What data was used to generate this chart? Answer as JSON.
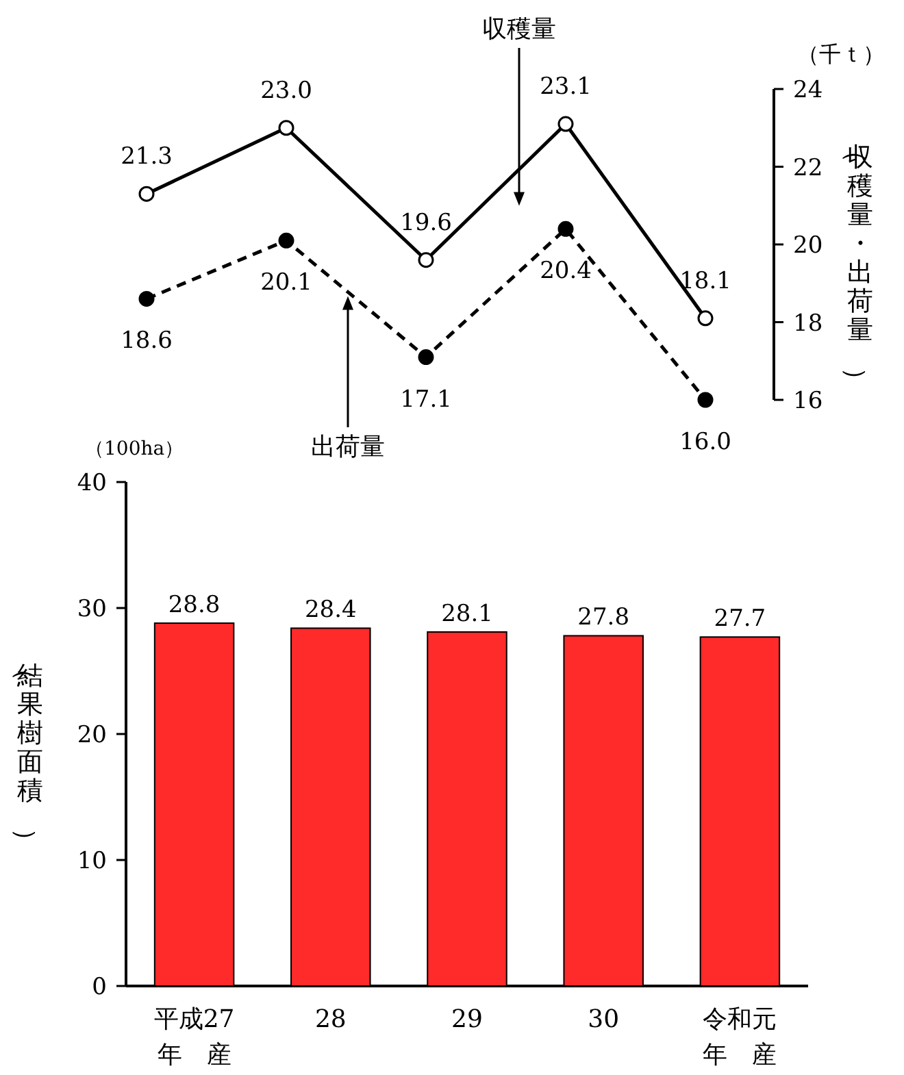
{
  "chart_data": [
    {
      "type": "line",
      "categories": [
        null,
        null,
        null,
        null,
        null
      ],
      "ylabel": "（収穫量・出荷量）",
      "ylim": [
        16,
        24
      ],
      "yticks": [
        16,
        18,
        20,
        22,
        24
      ],
      "tick_labels": "y",
      "marker": "circle",
      "annotations": [
        "（千ｔ）"
      ],
      "series": [
        {
          "name": "収穫量",
          "color": "#000000",
          "line_style": "solid",
          "values": [
            21.3,
            23.0,
            19.6,
            23.1,
            18.1
          ],
          "value_labels": [
            "21.3",
            "23.0",
            "19.6",
            "23.1",
            "18.1"
          ]
        },
        {
          "name": "出荷量",
          "color": "#000000",
          "line_style": "dashed",
          "values": [
            18.6,
            20.1,
            17.1,
            20.4,
            16.0
          ],
          "value_labels": [
            "18.6",
            "20.1",
            "17.1",
            "20.4",
            "16.0"
          ]
        }
      ]
    },
    {
      "type": "bar",
      "categories": [
        "平成27年　産",
        "28",
        "29",
        "30",
        "令和元年　産"
      ],
      "values": [
        28.8,
        28.4,
        28.1,
        27.8,
        27.7
      ],
      "value_labels": [
        "28.8",
        "28.4",
        "28.1",
        "27.8",
        "27.7"
      ],
      "color": "#ff2a2a",
      "ylabel": "（結果樹面積）",
      "ylim": [
        0,
        40
      ],
      "yticks": [
        0,
        10,
        20,
        30,
        40
      ],
      "annotations": [
        "（100ha）"
      ]
    }
  ]
}
